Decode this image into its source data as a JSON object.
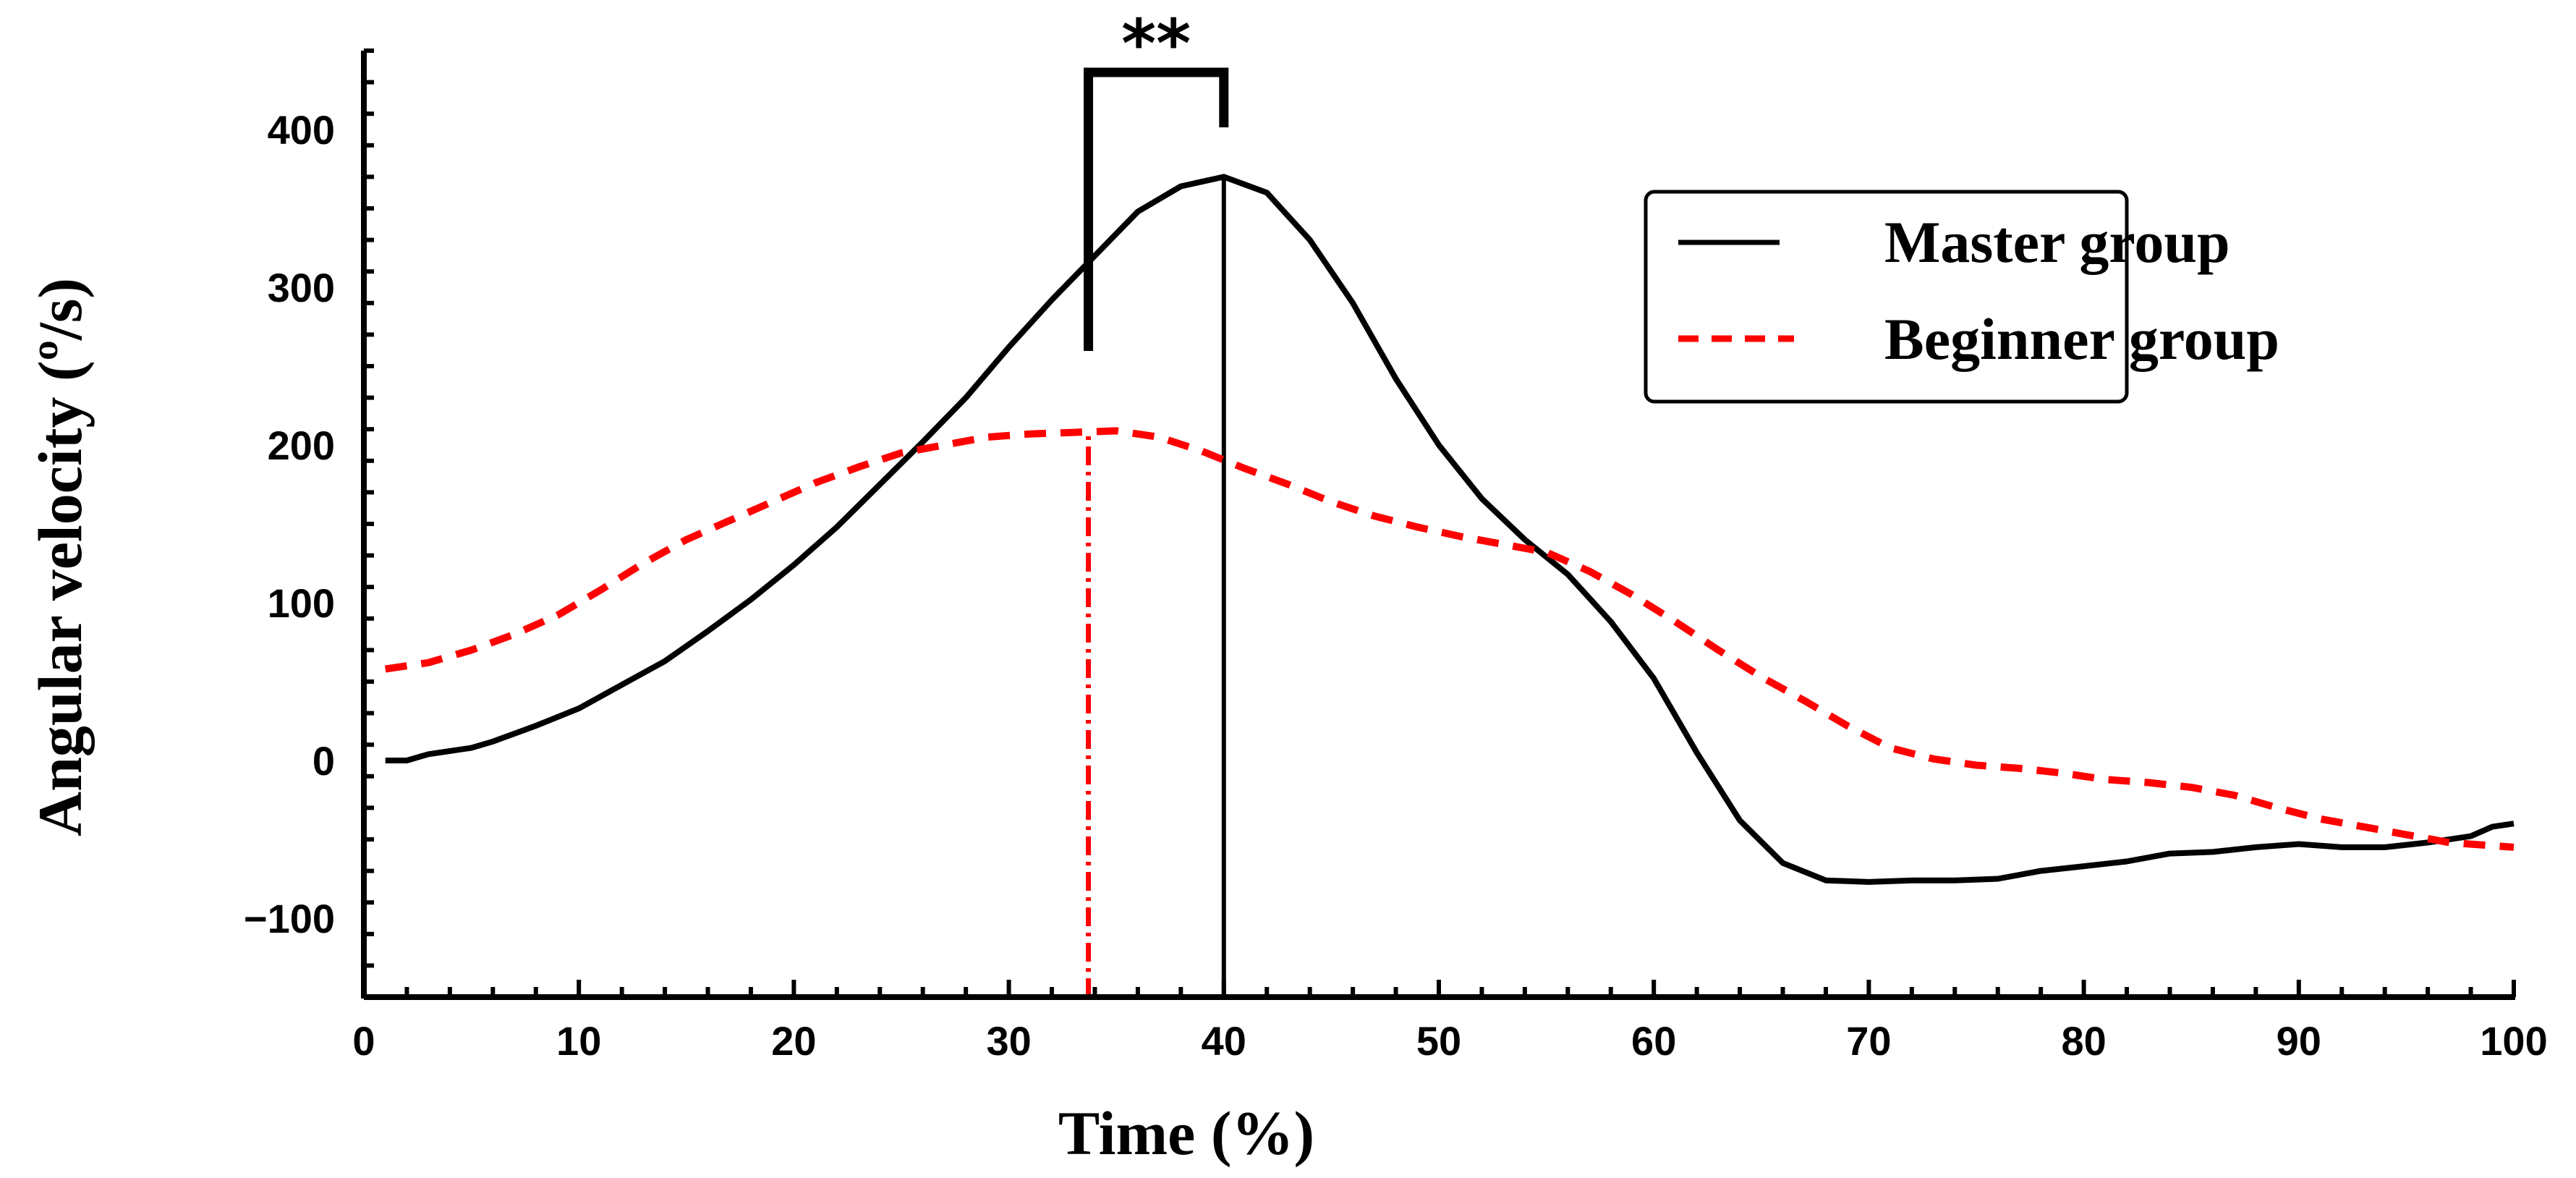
{
  "chart_data": {
    "type": "line",
    "title": "",
    "xlabel": "Time (%)",
    "ylabel": "Angular velocity (º/s)",
    "xlim": [
      0,
      100
    ],
    "ylim": [
      -150,
      450
    ],
    "xticks": [
      0,
      10,
      20,
      30,
      40,
      50,
      60,
      70,
      80,
      90,
      100
    ],
    "xtick_labels": [
      "0",
      "10",
      "20",
      "30",
      "40",
      "50",
      "60",
      "70",
      "80",
      "90",
      "100"
    ],
    "yticks": [
      -100,
      0,
      100,
      200,
      300,
      400
    ],
    "ytick_labels": [
      "−100",
      "0",
      "100",
      "200",
      "300",
      "400"
    ],
    "grid": false,
    "legend_position": "top-right",
    "series": [
      {
        "name": "Master group",
        "color": "#000000",
        "style": "solid",
        "x": [
          1,
          2,
          3,
          4,
          5,
          6,
          8,
          10,
          12,
          14,
          16,
          18,
          20,
          22,
          24,
          26,
          28,
          30,
          32,
          34,
          36,
          38,
          40,
          42,
          44,
          46,
          48,
          50,
          52,
          54,
          56,
          58,
          60,
          62,
          64,
          66,
          68,
          70,
          72,
          74,
          76,
          78,
          80,
          82,
          84,
          86,
          88,
          90,
          92,
          94,
          96,
          98,
          99,
          100
        ],
        "y": [
          0,
          0,
          4,
          6,
          8,
          12,
          22,
          33,
          48,
          63,
          82,
          102,
          124,
          148,
          175,
          202,
          230,
          262,
          292,
          320,
          348,
          364,
          370,
          360,
          330,
          290,
          242,
          200,
          166,
          140,
          118,
          88,
          52,
          5,
          -38,
          -65,
          -76,
          -77,
          -76,
          -76,
          -75,
          -70,
          -67,
          -64,
          -59,
          -58,
          -55,
          -53,
          -55,
          -55,
          -52,
          -48,
          -42,
          -40
        ]
      },
      {
        "name": "Beginner group",
        "color": "#ff0000",
        "style": "dashed",
        "x": [
          1,
          3,
          5,
          7,
          9,
          11,
          13,
          15,
          17,
          19,
          21,
          23,
          25,
          27,
          29,
          31,
          33,
          35,
          37,
          39,
          41,
          43,
          45,
          47,
          49,
          51,
          53,
          55,
          57,
          59,
          61,
          63,
          65,
          67,
          69,
          71,
          73,
          75,
          77,
          79,
          81,
          83,
          85,
          87,
          89,
          91,
          93,
          95,
          97,
          100
        ],
        "y": [
          58,
          62,
          70,
          80,
          92,
          108,
          125,
          140,
          152,
          164,
          176,
          186,
          195,
          200,
          205,
          207,
          208,
          209,
          205,
          196,
          185,
          175,
          164,
          155,
          148,
          142,
          137,
          132,
          120,
          105,
          88,
          70,
          53,
          38,
          22,
          8,
          1,
          -3,
          -5,
          -8,
          -12,
          -14,
          -17,
          -22,
          -30,
          -37,
          -42,
          -47,
          -52,
          -55
        ]
      }
    ],
    "annotations": [
      {
        "type": "vline",
        "x": 40,
        "y_from": -150,
        "y_to": 370,
        "color": "#000000",
        "style": "solid"
      },
      {
        "type": "vline",
        "x": 33.7,
        "y_from": -150,
        "y_to": 209,
        "color": "#ff0000",
        "style": "dash-dot"
      },
      {
        "type": "significance-bracket",
        "x1": 33.7,
        "x2": 40,
        "label": "**"
      }
    ]
  }
}
